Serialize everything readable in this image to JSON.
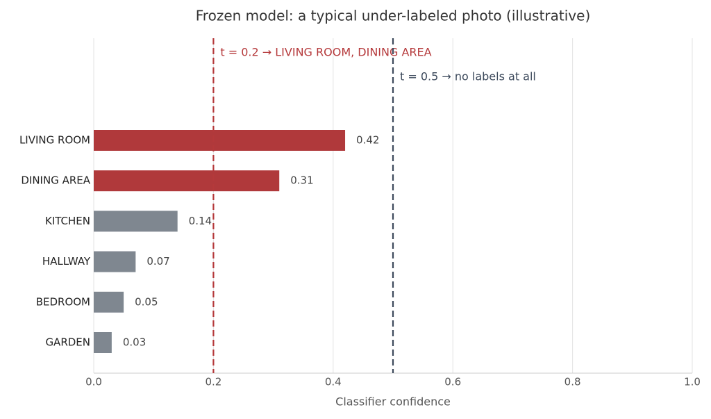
{
  "chart_data": {
    "type": "hbar",
    "title": "Frozen model: a typical under-labeled photo (illustrative)",
    "x_label": "Classifier confidence",
    "categories": [
      "LIVING ROOM",
      "DINING AREA",
      "KITCHEN",
      "HALLWAY",
      "BEDROOM",
      "GARDEN"
    ],
    "values": [
      0.42,
      0.31,
      0.14,
      0.07,
      0.05,
      0.03
    ],
    "colors": [
      "#b0393b",
      "#b0393b",
      "#7f8790",
      "#7f8790",
      "#7f8790",
      "#7f8790"
    ],
    "xlim": [
      0,
      1
    ],
    "xticks": [
      {
        "value": 0,
        "label": "0.0"
      },
      {
        "value": 0.2,
        "label": "0.2"
      },
      {
        "value": 0.4,
        "label": "0.4"
      },
      {
        "value": 0.6,
        "label": "0.6"
      },
      {
        "value": 0.8,
        "label": "0.8"
      },
      {
        "value": 1,
        "label": "1.0"
      }
    ],
    "grid": true,
    "thresholds": [
      {
        "value": 0.2,
        "label": "t = 0.2  →  LIVING ROOM, DINING AREA",
        "color": "#b5393b"
      },
      {
        "value": 0.5,
        "label": "t = 0.5  →  no labels at all",
        "color": "#3d4a5c"
      }
    ]
  }
}
